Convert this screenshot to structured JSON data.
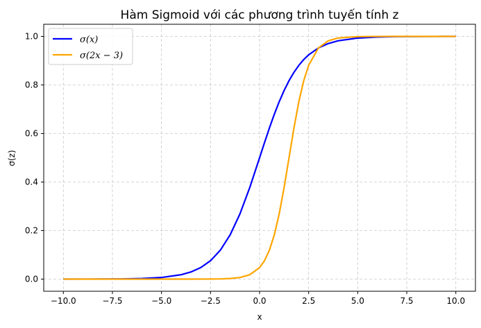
{
  "chart_data": {
    "type": "line",
    "title": "Hàm Sigmoid với các phương trình tuyến tính z",
    "xlabel": "x",
    "ylabel": "σ(z)",
    "xlim": [
      -11.0,
      11.0
    ],
    "ylim": [
      -0.05,
      1.05
    ],
    "xticks": [
      -10.0,
      -7.5,
      -5.0,
      -2.5,
      0.0,
      2.5,
      5.0,
      7.5,
      10.0
    ],
    "xtick_labels": [
      "−10.0",
      "−7.5",
      "−5.0",
      "−2.5",
      "0.0",
      "2.5",
      "5.0",
      "7.5",
      "10.0"
    ],
    "yticks": [
      0.0,
      0.2,
      0.4,
      0.6,
      0.8,
      1.0
    ],
    "ytick_labels": [
      "0.0",
      "0.2",
      "0.4",
      "0.6",
      "0.8",
      "1.0"
    ],
    "grid": true,
    "legend_position": "top-left",
    "x": [
      -10,
      -9,
      -8,
      -7,
      -6,
      -5,
      -4,
      -3.5,
      -3,
      -2.5,
      -2,
      -1.5,
      -1,
      -0.5,
      0,
      0.25,
      0.5,
      0.75,
      1,
      1.25,
      1.5,
      1.75,
      2,
      2.25,
      2.5,
      3,
      3.5,
      4,
      5,
      6,
      7,
      8,
      9,
      10
    ],
    "series": [
      {
        "name": "σ(x)",
        "color": "#0000ff",
        "values": [
          5e-05,
          0.00012,
          0.00034,
          0.00091,
          0.00247,
          0.00669,
          0.01799,
          0.02931,
          0.04743,
          0.07586,
          0.1192,
          0.18243,
          0.26894,
          0.37754,
          0.5,
          0.56218,
          0.62246,
          0.67918,
          0.73106,
          0.7773,
          0.81757,
          0.85195,
          0.8808,
          0.90465,
          0.92414,
          0.95257,
          0.97069,
          0.98201,
          0.99331,
          0.99753,
          0.99909,
          0.99966,
          0.99988,
          0.99995
        ]
      },
      {
        "name": "σ(2x − 3)",
        "color": "#ffa500",
        "values": [
          0.0,
          0.0,
          0.0,
          0.0,
          0.0,
          0.0,
          2e-05,
          4e-05,
          0.00012,
          0.00034,
          0.00091,
          0.00247,
          0.00669,
          0.01799,
          0.04743,
          0.07586,
          0.1192,
          0.18243,
          0.26894,
          0.37754,
          0.5,
          0.62246,
          0.73106,
          0.81757,
          0.8808,
          0.95257,
          0.98201,
          0.99331,
          0.99909,
          0.99988,
          0.99998,
          1.0,
          1.0,
          1.0
        ]
      }
    ]
  }
}
